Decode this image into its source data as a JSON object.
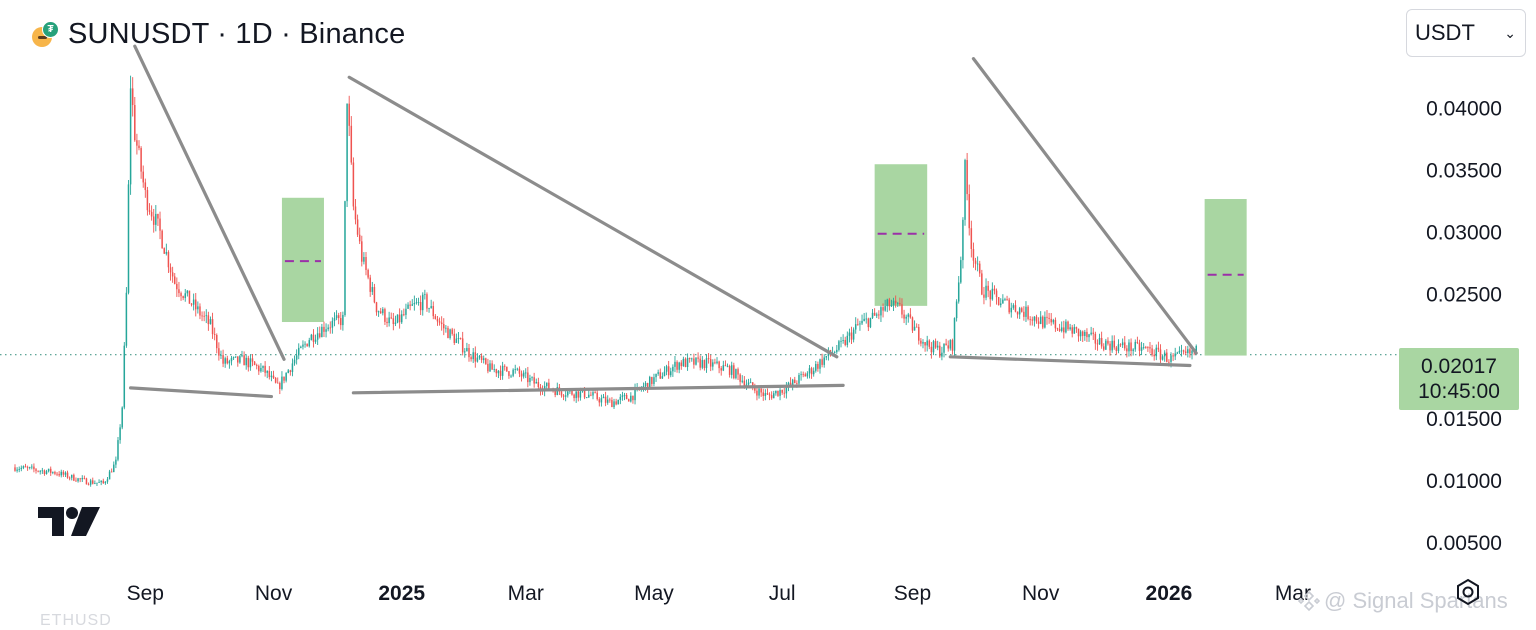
{
  "header": {
    "title": "SUNUSDT · 1D · Binance",
    "coin_icon": "sun-token-icon",
    "tether_glyph": "₮"
  },
  "currency_select": {
    "value": "USDT"
  },
  "price_tag": {
    "price": "0.02017",
    "countdown": "10:45:00"
  },
  "watermark": {
    "text": "@ Signal Spartans"
  },
  "bottom_ghost": {
    "text": "ETHUSD"
  },
  "colors": {
    "up": "#26a69a",
    "down": "#ef5350",
    "zone": "#a9d6a2",
    "trendline": "#8c8c8c",
    "target_dash": "#9b30a8",
    "price_line": "#4a9a8a"
  },
  "chart_data": {
    "type": "candlestick",
    "title": "SUNUSDT · 1D · Binance",
    "y_ticks": [
      "0.04000",
      "0.03500",
      "0.03000",
      "0.02500",
      "0.01500",
      "0.01000",
      "0.00500"
    ],
    "x_ticks": [
      {
        "label": "Sep",
        "bold": false
      },
      {
        "label": "Nov",
        "bold": false
      },
      {
        "label": "2025",
        "bold": true
      },
      {
        "label": "Mar",
        "bold": false
      },
      {
        "label": "May",
        "bold": false
      },
      {
        "label": "Jul",
        "bold": false
      },
      {
        "label": "Sep",
        "bold": false
      },
      {
        "label": "Nov",
        "bold": false
      },
      {
        "label": "2026",
        "bold": true
      },
      {
        "label": "Mar",
        "bold": false
      }
    ],
    "ylim": [
      0.003,
      0.0455
    ],
    "time_axis": {
      "start": "2024-07-01",
      "end": "2026-04-20"
    },
    "last_price": 0.02017,
    "price_path": [
      [
        "2024-07-01",
        0.0111
      ],
      [
        "2024-07-20",
        0.0107
      ],
      [
        "2024-08-03",
        0.01
      ],
      [
        "2024-08-12",
        0.0098
      ],
      [
        "2024-08-18",
        0.0115
      ],
      [
        "2024-08-21",
        0.016
      ],
      [
        "2024-08-23",
        0.025
      ],
      [
        "2024-08-25",
        0.042
      ],
      [
        "2024-08-27",
        0.038
      ],
      [
        "2024-09-01",
        0.033
      ],
      [
        "2024-09-08",
        0.03
      ],
      [
        "2024-09-15",
        0.026
      ],
      [
        "2024-09-22",
        0.0245
      ],
      [
        "2024-10-02",
        0.0225
      ],
      [
        "2024-10-08",
        0.0195
      ],
      [
        "2024-10-18",
        0.0197
      ],
      [
        "2024-10-28",
        0.0188
      ],
      [
        "2024-11-03",
        0.0175
      ],
      [
        "2024-11-10",
        0.0195
      ],
      [
        "2024-11-18",
        0.0215
      ],
      [
        "2024-11-26",
        0.0225
      ],
      [
        "2024-12-04",
        0.023
      ],
      [
        "2024-12-06",
        0.041
      ],
      [
        "2024-12-09",
        0.032
      ],
      [
        "2024-12-13",
        0.028
      ],
      [
        "2024-12-20",
        0.024
      ],
      [
        "2024-12-28",
        0.0225
      ],
      [
        "2025-01-06",
        0.024
      ],
      [
        "2025-01-12",
        0.0245
      ],
      [
        "2025-01-20",
        0.0225
      ],
      [
        "2025-02-01",
        0.0205
      ],
      [
        "2025-02-12",
        0.019
      ],
      [
        "2025-02-24",
        0.0188
      ],
      [
        "2025-03-06",
        0.0178
      ],
      [
        "2025-03-18",
        0.0172
      ],
      [
        "2025-03-30",
        0.017
      ],
      [
        "2025-04-10",
        0.0163
      ],
      [
        "2025-04-20",
        0.0168
      ],
      [
        "2025-05-01",
        0.0182
      ],
      [
        "2025-05-13",
        0.0195
      ],
      [
        "2025-05-25",
        0.0195
      ],
      [
        "2025-06-06",
        0.019
      ],
      [
        "2025-06-16",
        0.0176
      ],
      [
        "2025-06-24",
        0.0168
      ],
      [
        "2025-07-04",
        0.0176
      ],
      [
        "2025-07-14",
        0.0188
      ],
      [
        "2025-07-22",
        0.02
      ],
      [
        "2025-07-30",
        0.021
      ],
      [
        "2025-08-06",
        0.0225
      ],
      [
        "2025-08-14",
        0.0232
      ],
      [
        "2025-08-21",
        0.0242
      ],
      [
        "2025-08-26",
        0.0238
      ],
      [
        "2025-09-02",
        0.0222
      ],
      [
        "2025-09-08",
        0.021
      ],
      [
        "2025-09-14",
        0.0205
      ],
      [
        "2025-09-20",
        0.021
      ],
      [
        "2025-09-24",
        0.028
      ],
      [
        "2025-09-26",
        0.035
      ],
      [
        "2025-09-29",
        0.029
      ],
      [
        "2025-10-04",
        0.0255
      ],
      [
        "2025-10-12",
        0.0245
      ],
      [
        "2025-10-22",
        0.0238
      ],
      [
        "2025-11-02",
        0.0228
      ],
      [
        "2025-11-15",
        0.0222
      ],
      [
        "2025-11-28",
        0.0212
      ],
      [
        "2025-12-10",
        0.0208
      ],
      [
        "2025-12-22",
        0.0206
      ],
      [
        "2026-01-02",
        0.0198
      ],
      [
        "2026-01-08",
        0.0201
      ],
      [
        "2026-01-14",
        0.0204
      ]
    ],
    "trendlines": [
      {
        "from": [
          "2024-08-27",
          0.045
        ],
        "to": [
          "2024-11-06",
          0.0198
        ]
      },
      {
        "from": [
          "2024-08-25",
          0.0175
        ],
        "to": [
          "2024-10-31",
          0.0168
        ]
      },
      {
        "from": [
          "2024-12-07",
          0.0425
        ],
        "to": [
          "2025-07-27",
          0.02
        ]
      },
      {
        "from": [
          "2024-12-09",
          0.0171
        ],
        "to": [
          "2025-07-30",
          0.0177
        ]
      },
      {
        "from": [
          "2025-09-30",
          0.044
        ],
        "to": [
          "2026-01-14",
          0.0203
        ]
      },
      {
        "from": [
          "2025-09-19",
          0.02
        ],
        "to": [
          "2026-01-11",
          0.0193
        ]
      }
    ],
    "target_zones": [
      {
        "start": "2024-11-05",
        "end": "2024-11-25",
        "low": 0.0228,
        "high": 0.0328,
        "mid": 0.0277
      },
      {
        "start": "2025-08-14",
        "end": "2025-09-08",
        "low": 0.0241,
        "high": 0.0355,
        "mid": 0.0299
      },
      {
        "start": "2026-01-18",
        "end": "2026-02-07",
        "low": 0.0201,
        "high": 0.0327,
        "mid": 0.0266
      }
    ]
  }
}
